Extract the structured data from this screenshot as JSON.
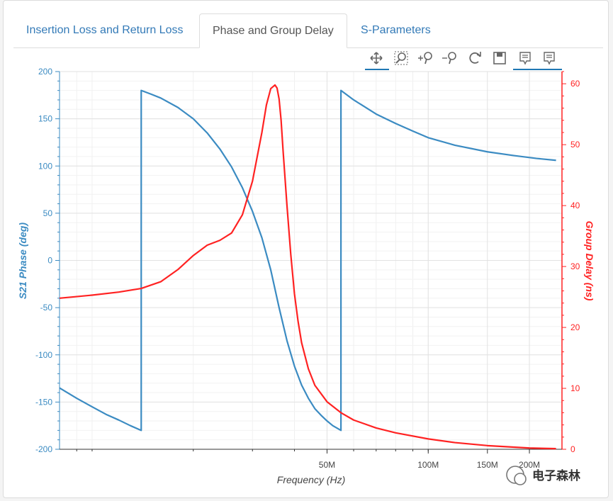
{
  "tabs": [
    {
      "label": "Insertion Loss and Return Loss",
      "active": false
    },
    {
      "label": "Phase and Group Delay",
      "active": true
    },
    {
      "label": "S-Parameters",
      "active": false
    }
  ],
  "toolbar": {
    "tools": [
      "pan-icon",
      "box-zoom-icon",
      "zoom-in-icon",
      "zoom-out-icon",
      "reset-icon",
      "save-icon",
      "hover-icon",
      "hover-icon-2"
    ],
    "active_color": "#1f77b4"
  },
  "watermark": {
    "text": "电子森林"
  },
  "chart_data": {
    "type": "line",
    "xlabel": "Frequency (Hz)",
    "ylabel_left": "S21 Phase (deg)",
    "ylabel_right": "Group Delay (ns)",
    "x_scale": "log",
    "xlim": [
      8000000,
      250000000
    ],
    "ylim_left": [
      -200,
      200
    ],
    "ylim_right": [
      0,
      62
    ],
    "x_ticks": [
      {
        "value": 50000000,
        "label": "50M"
      },
      {
        "value": 100000000,
        "label": "100M"
      },
      {
        "value": 150000000,
        "label": "150M"
      },
      {
        "value": 200000000,
        "label": "200M"
      }
    ],
    "y_ticks_left": [
      -200,
      -150,
      -100,
      -50,
      0,
      50,
      100,
      150,
      200
    ],
    "y_ticks_right": [
      0,
      10,
      20,
      30,
      40,
      50,
      60
    ],
    "grid": true,
    "colors": {
      "phase": "#3b8bc2",
      "delay": "#ff2222",
      "left_axis": "#3b8bc2",
      "right_axis": "#ff2222"
    },
    "series": [
      {
        "axis": "left",
        "color": "#3b8bc2",
        "x": [
          8000000,
          9000000,
          10000000,
          11000000,
          12000000,
          13000000,
          14000000,
          14000000,
          15000000,
          16000000,
          18000000,
          20000000,
          22000000,
          24000000,
          26000000,
          28000000,
          30000000,
          32000000,
          34000000,
          36000000,
          38000000,
          40000000,
          42000000,
          44000000,
          46000000,
          48000000,
          50000000,
          52000000,
          55000000,
          55000000,
          60000000,
          70000000,
          80000000,
          90000000,
          100000000,
          120000000,
          150000000,
          180000000,
          210000000,
          240000000
        ],
        "y": [
          -135,
          -146,
          -155,
          -163,
          -169,
          -175,
          -180,
          180,
          176,
          172,
          162,
          150,
          135,
          118,
          99,
          77,
          52,
          24,
          -10,
          -50,
          -85,
          -112,
          -132,
          -146,
          -157,
          -164,
          -170,
          -175,
          -180,
          180,
          170,
          155,
          145,
          137,
          130,
          122,
          115,
          111,
          108,
          106
        ]
      },
      {
        "axis": "right",
        "color": "#ff2222",
        "x": [
          8000000,
          10000000,
          12000000,
          14000000,
          16000000,
          18000000,
          20000000,
          22000000,
          24000000,
          26000000,
          28000000,
          30000000,
          32000000,
          33000000,
          34000000,
          35000000,
          35500000,
          36000000,
          36500000,
          37000000,
          38000000,
          39000000,
          40000000,
          41000000,
          42000000,
          44000000,
          46000000,
          50000000,
          55000000,
          60000000,
          70000000,
          80000000,
          100000000,
          120000000,
          150000000,
          200000000,
          240000000
        ],
        "y": [
          24.8,
          25.3,
          25.8,
          26.4,
          27.5,
          29.5,
          31.8,
          33.5,
          34.3,
          35.5,
          38.5,
          44.0,
          52.0,
          56.5,
          59.2,
          59.8,
          59.3,
          57.5,
          54.0,
          49.0,
          40.0,
          32.0,
          25.5,
          21.0,
          17.5,
          13.2,
          10.5,
          7.8,
          6.0,
          4.8,
          3.5,
          2.7,
          1.7,
          1.1,
          0.6,
          0.2,
          0.1
        ]
      }
    ]
  }
}
